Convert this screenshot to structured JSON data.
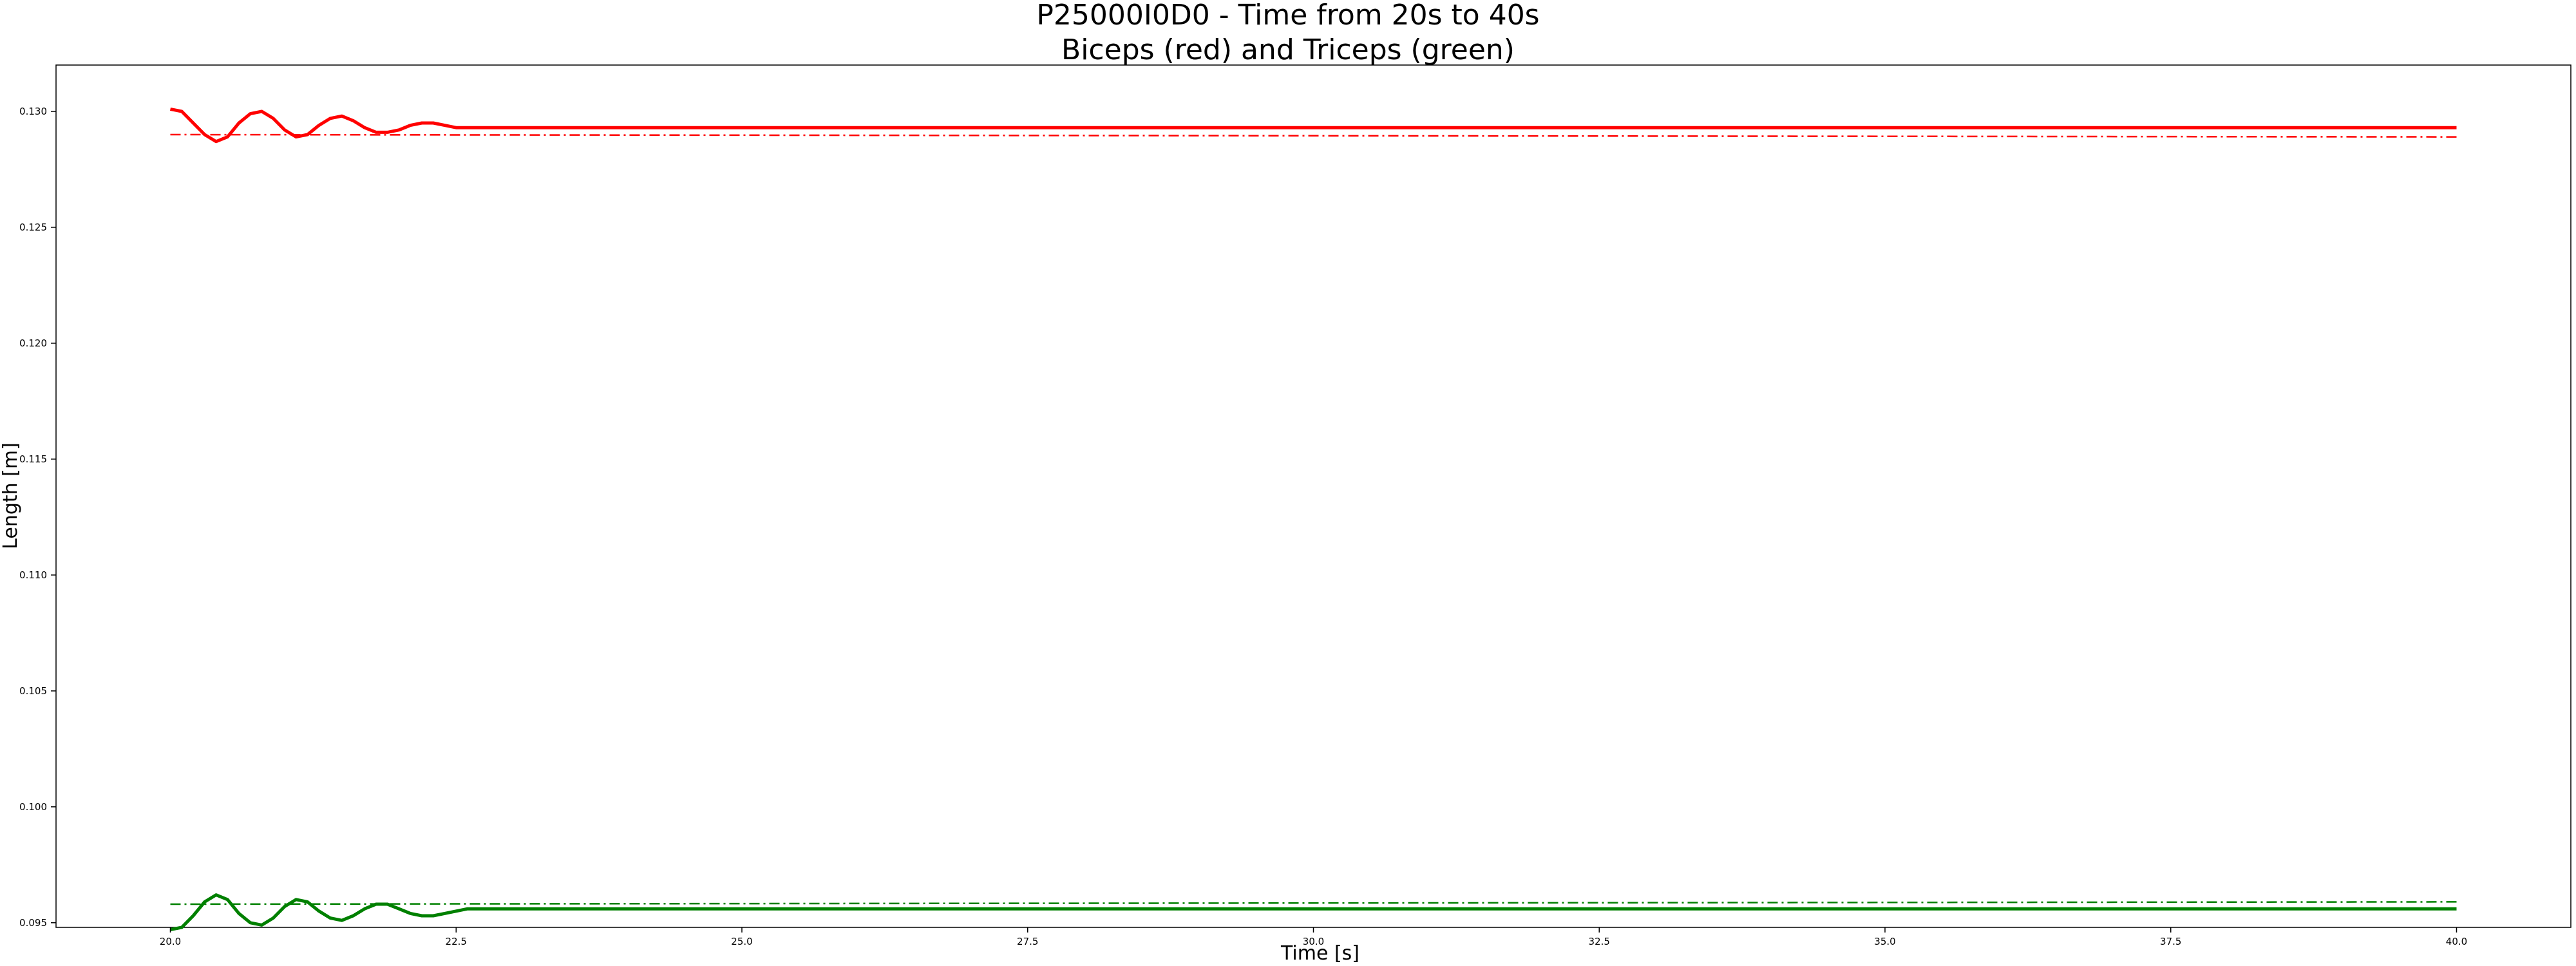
{
  "chart_data": {
    "type": "line",
    "title": "P25000I0D0 - Time from 20s to 40s",
    "subtitle": "Biceps (red) and Triceps (green)",
    "xlabel": "Time [s]",
    "ylabel": "Length [m]",
    "xlim": [
      19.0,
      41.0
    ],
    "ylim": [
      0.0948,
      0.132
    ],
    "xticks": [
      "20.0",
      "22.5",
      "25.0",
      "27.5",
      "30.0",
      "32.5",
      "35.0",
      "37.5",
      "40.0"
    ],
    "yticks": [
      "0.095",
      "0.100",
      "0.105",
      "0.110",
      "0.115",
      "0.120",
      "0.125",
      "0.130"
    ],
    "grid": false,
    "legend": "none",
    "series": [
      {
        "color": "#ff0000",
        "style": "solid",
        "x": [
          20.0,
          20.1,
          20.2,
          20.3,
          20.4,
          20.5,
          20.6,
          20.7,
          20.8,
          20.9,
          21.0,
          21.1,
          21.2,
          21.3,
          21.4,
          21.5,
          21.6,
          21.7,
          21.8,
          21.9,
          22.0,
          22.1,
          22.2,
          22.3,
          22.4,
          22.5,
          22.6,
          22.7,
          22.8,
          23.0,
          25.0,
          30.0,
          35.0,
          40.0
        ],
        "y": [
          0.1301,
          0.13,
          0.1295,
          0.129,
          0.1287,
          0.1289,
          0.1295,
          0.1299,
          0.13,
          0.1297,
          0.1292,
          0.1289,
          0.129,
          0.1294,
          0.1297,
          0.1298,
          0.1296,
          0.1293,
          0.1291,
          0.1291,
          0.1292,
          0.1294,
          0.1295,
          0.1295,
          0.1294,
          0.1293,
          0.1293,
          0.1293,
          0.1293,
          0.1293,
          0.1293,
          0.1293,
          0.1293,
          0.1293
        ]
      },
      {
        "color": "#ff0000",
        "style": "dashdot",
        "x": [
          20.0,
          40.0
        ],
        "y": [
          0.129,
          0.1289
        ]
      },
      {
        "color": "#008000",
        "style": "solid",
        "x": [
          20.0,
          20.1,
          20.2,
          20.3,
          20.4,
          20.5,
          20.6,
          20.7,
          20.8,
          20.9,
          21.0,
          21.1,
          21.2,
          21.3,
          21.4,
          21.5,
          21.6,
          21.7,
          21.8,
          21.9,
          22.0,
          22.1,
          22.2,
          22.3,
          22.4,
          22.5,
          22.6,
          22.7,
          22.8,
          23.0,
          25.0,
          30.0,
          35.0,
          40.0
        ],
        "y": [
          0.0947,
          0.0948,
          0.0953,
          0.0959,
          0.0962,
          0.096,
          0.0954,
          0.095,
          0.0949,
          0.0952,
          0.0957,
          0.096,
          0.0959,
          0.0955,
          0.0952,
          0.0951,
          0.0953,
          0.0956,
          0.0958,
          0.0958,
          0.0956,
          0.0954,
          0.0953,
          0.0953,
          0.0954,
          0.0955,
          0.0956,
          0.0956,
          0.0956,
          0.0956,
          0.0956,
          0.0956,
          0.0956,
          0.0956
        ]
      },
      {
        "color": "#008000",
        "style": "dashdot",
        "x": [
          20.0,
          40.0
        ],
        "y": [
          0.0958,
          0.0959
        ]
      }
    ]
  }
}
